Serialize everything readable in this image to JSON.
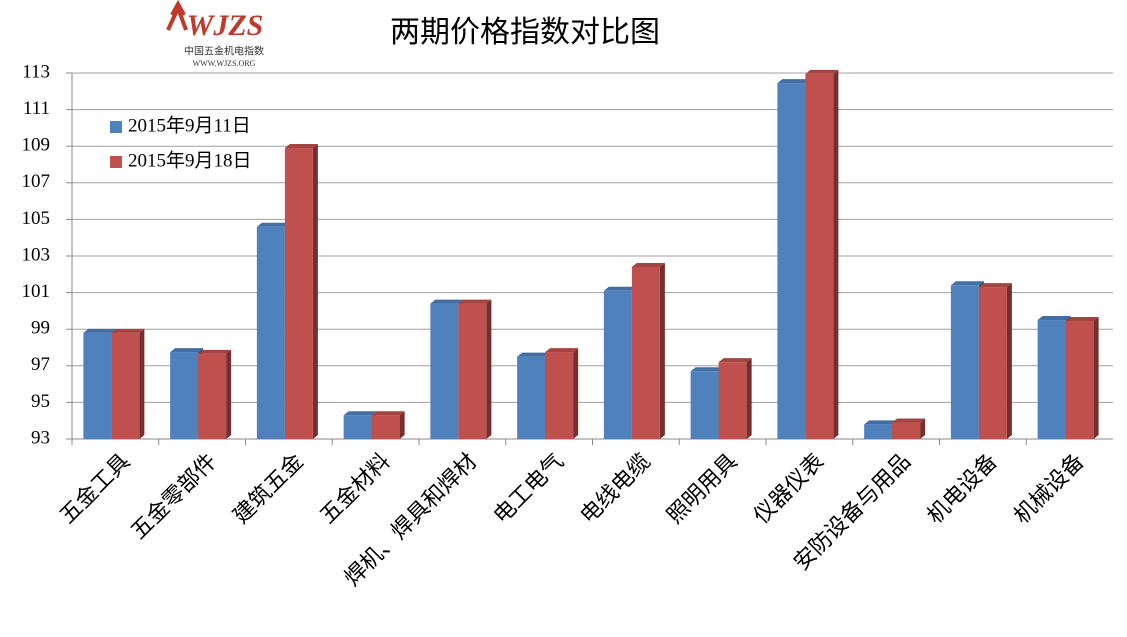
{
  "logo": {
    "mark": "WJZS",
    "name": "中国五金机电指数",
    "url": "WWW.WJZS.ORG"
  },
  "chart_data": {
    "type": "bar",
    "title": "两期价格指数对比图",
    "categories": [
      "五金工具",
      "五金零部件",
      "建筑五金",
      "五金材料",
      "焊机、焊具和焊材",
      "电工电气",
      "电线电缆",
      "照明用具",
      "仪器仪表",
      "安防设备与用品",
      "机电设备",
      "机械设备"
    ],
    "series": [
      {
        "name": "2015年9月11日",
        "color": "#4f81bd",
        "values": [
          98.8,
          97.75,
          104.6,
          94.3,
          100.4,
          97.5,
          101.1,
          96.7,
          112.45,
          93.8,
          101.4,
          99.5
        ]
      },
      {
        "name": "2015年9月18日",
        "color": "#c0504d",
        "values": [
          98.8,
          97.65,
          108.9,
          94.3,
          100.4,
          97.75,
          102.4,
          97.2,
          112.95,
          93.9,
          101.3,
          99.45
        ]
      }
    ],
    "ylim": [
      93,
      113
    ],
    "yticks": [
      93,
      95,
      97,
      99,
      101,
      103,
      105,
      107,
      109,
      111,
      113
    ],
    "grid": true,
    "legend": "top-left"
  }
}
